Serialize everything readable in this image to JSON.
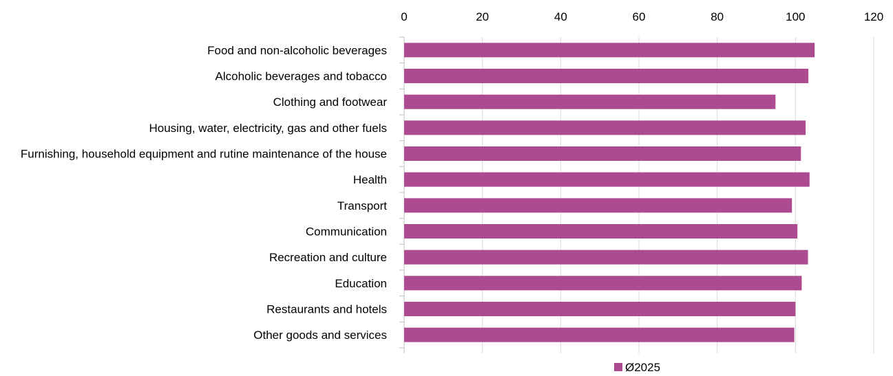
{
  "chart_data": {
    "type": "bar",
    "orientation": "horizontal",
    "categories": [
      "Food and non-alcoholic beverages",
      "Alcoholic beverages and tobacco",
      "Clothing and footwear",
      "Housing, water, electricity, gas and other fuels",
      "Furnishing, household equipment and rutine maintenance of the house",
      "Health",
      "Transport",
      "Communication",
      "Recreation and culture",
      "Education",
      "Restaurants and hotels",
      "Other goods and services"
    ],
    "series": [
      {
        "name": "Ø2025",
        "color": "#ad4b90",
        "values": [
          104.9,
          103.3,
          94.9,
          102.6,
          101.4,
          103.6,
          99.1,
          100.5,
          103.2,
          101.6,
          100.0,
          99.7
        ]
      }
    ],
    "xlim": [
      0,
      120
    ],
    "x_ticks": [
      "0",
      "20",
      "40",
      "60",
      "80",
      "100",
      "120"
    ],
    "x_axis_position": "top",
    "grid": true,
    "legend_position": "bottom",
    "title": "",
    "xlabel": "",
    "ylabel": ""
  }
}
